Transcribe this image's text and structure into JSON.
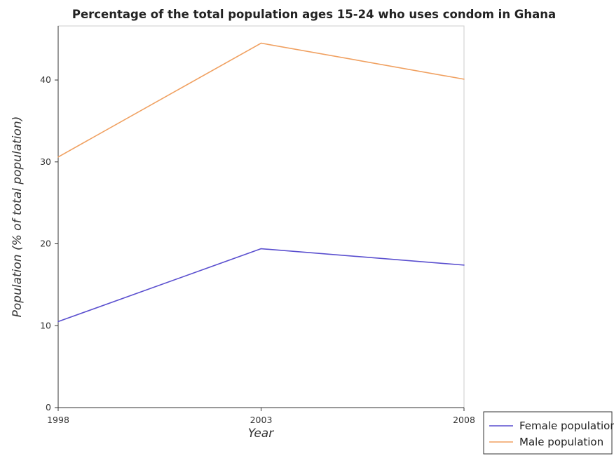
{
  "chart_data": {
    "type": "line",
    "title": "Percentage of the total population ages 15-24 who uses condom in Ghana",
    "xlabel": "Year",
    "ylabel": "Population (% of total population)",
    "categories": [
      "1998",
      "2003",
      "2008"
    ],
    "series": [
      {
        "name": "Female population",
        "values": [
          10.5,
          19.4,
          17.4
        ],
        "color": "#5a4fcf"
      },
      {
        "name": "Male population",
        "values": [
          30.6,
          44.5,
          40.1
        ],
        "color": "#f0a060"
      }
    ],
    "yticks": [
      0,
      10,
      20,
      30,
      40
    ],
    "ylim": [
      0,
      46.6
    ],
    "grid": false,
    "legend_position": "bottom-right"
  }
}
